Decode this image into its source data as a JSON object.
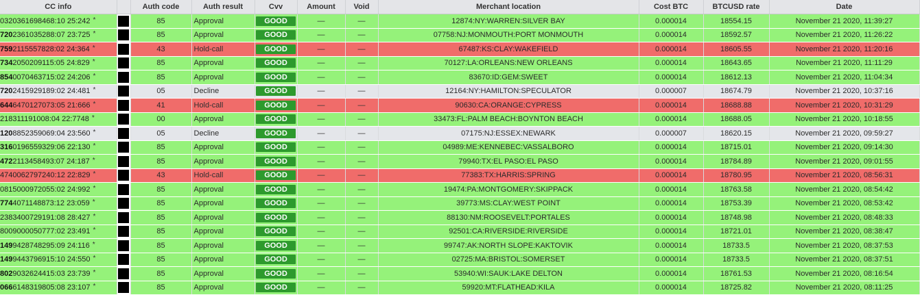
{
  "columns": [
    "CC info",
    "",
    "Auth code",
    "Auth result",
    "Cvv",
    "Amount",
    "Void",
    "Merchant location",
    "Cost BTC",
    "BTCUSD rate",
    "Date"
  ],
  "colors": {
    "approval": "#95f27a",
    "hold": "#f06c6a",
    "decline": "#e4e6ea",
    "cvv_badge": "#2d9a2d"
  },
  "rows": [
    {
      "status": "green",
      "cc_bin": "",
      "cc_rest": "0320361698468:10 25:242",
      "star": "*",
      "auth_code": "85",
      "auth_result": "Approval",
      "cvv": "GOOD",
      "amount": "—",
      "void": "—",
      "merchant": "12874:NY:WARREN:SILVER BAY",
      "cost_btc": "0.000014",
      "btcusd": "18554.15",
      "date": "November 21 2020, 11:39:27"
    },
    {
      "status": "green",
      "cc_bin": "720",
      "cc_rest": "2361035288:07 23:725",
      "star": "*",
      "auth_code": "85",
      "auth_result": "Approval",
      "cvv": "GOOD",
      "amount": "—",
      "void": "—",
      "merchant": "07758:NJ:MONMOUTH:PORT MONMOUTH",
      "cost_btc": "0.000014",
      "btcusd": "18592.57",
      "date": "November 21 2020, 11:26:22"
    },
    {
      "status": "red",
      "cc_bin": "759",
      "cc_rest": "2115557828:02 24:364",
      "star": "*",
      "auth_code": "43",
      "auth_result": "Hold-call",
      "cvv": "GOOD",
      "amount": "—",
      "void": "—",
      "merchant": "67487:KS:CLAY:WAKEFIELD",
      "cost_btc": "0.000014",
      "btcusd": "18605.55",
      "date": "November 21 2020, 11:20:16"
    },
    {
      "status": "green",
      "cc_bin": "734",
      "cc_rest": "2050209115:05 24:829",
      "star": "*",
      "auth_code": "85",
      "auth_result": "Approval",
      "cvv": "GOOD",
      "amount": "—",
      "void": "—",
      "merchant": "70127:LA:ORLEANS:NEW ORLEANS",
      "cost_btc": "0.000014",
      "btcusd": "18643.65",
      "date": "November 21 2020, 11:11:29"
    },
    {
      "status": "green",
      "cc_bin": "854",
      "cc_rest": "0070463715:02 24:206",
      "star": "*",
      "auth_code": "85",
      "auth_result": "Approval",
      "cvv": "GOOD",
      "amount": "—",
      "void": "—",
      "merchant": "83670:ID:GEM:SWEET",
      "cost_btc": "0.000014",
      "btcusd": "18612.13",
      "date": "November 21 2020, 11:04:34"
    },
    {
      "status": "gray",
      "cc_bin": "720",
      "cc_rest": "2415929189:02 24:481",
      "star": "*",
      "auth_code": "05",
      "auth_result": "Decline",
      "cvv": "GOOD",
      "amount": "—",
      "void": "—",
      "merchant": "12164:NY:HAMILTON:SPECULATOR",
      "cost_btc": "0.000007",
      "btcusd": "18674.79",
      "date": "November 21 2020, 10:37:16"
    },
    {
      "status": "red",
      "cc_bin": "644",
      "cc_rest": "6470127073:05 21:666",
      "star": "*",
      "auth_code": "41",
      "auth_result": "Hold-call",
      "cvv": "GOOD",
      "amount": "—",
      "void": "—",
      "merchant": "90630:CA:ORANGE:CYPRESS",
      "cost_btc": "0.000014",
      "btcusd": "18688.88",
      "date": "November 21 2020, 10:31:29"
    },
    {
      "status": "green",
      "cc_bin": "",
      "cc_rest": "218311191008:04 22:7748",
      "star": "*",
      "auth_code": "00",
      "auth_result": "Approval",
      "cvv": "GOOD",
      "amount": "—",
      "void": "—",
      "merchant": "33473:FL:PALM BEACH:BOYNTON BEACH",
      "cost_btc": "0.000014",
      "btcusd": "18688.05",
      "date": "November 21 2020, 10:18:55"
    },
    {
      "status": "gray",
      "cc_bin": "120",
      "cc_rest": "8852359069:04 23:560",
      "star": "*",
      "auth_code": "05",
      "auth_result": "Decline",
      "cvv": "GOOD",
      "amount": "—",
      "void": "—",
      "merchant": "07175:NJ:ESSEX:NEWARK",
      "cost_btc": "0.000007",
      "btcusd": "18620.15",
      "date": "November 21 2020, 09:59:27"
    },
    {
      "status": "green",
      "cc_bin": "316",
      "cc_rest": "0196559329:06 22:130",
      "star": "*",
      "auth_code": "85",
      "auth_result": "Approval",
      "cvv": "GOOD",
      "amount": "—",
      "void": "—",
      "merchant": "04989:ME:KENNEBEC:VASSALBORO",
      "cost_btc": "0.000014",
      "btcusd": "18715.01",
      "date": "November 21 2020, 09:14:30"
    },
    {
      "status": "green",
      "cc_bin": "472",
      "cc_rest": "2113458493:07 24:187",
      "star": "*",
      "auth_code": "85",
      "auth_result": "Approval",
      "cvv": "GOOD",
      "amount": "—",
      "void": "—",
      "merchant": "79940:TX:EL PASO:EL PASO",
      "cost_btc": "0.000014",
      "btcusd": "18784.89",
      "date": "November 21 2020, 09:01:55"
    },
    {
      "status": "red",
      "cc_bin": "",
      "cc_rest": "4740062797240:12 22:829",
      "star": "*",
      "auth_code": "43",
      "auth_result": "Hold-call",
      "cvv": "GOOD",
      "amount": "—",
      "void": "—",
      "merchant": "77383:TX:HARRIS:SPRING",
      "cost_btc": "0.000014",
      "btcusd": "18780.95",
      "date": "November 21 2020, 08:56:31"
    },
    {
      "status": "green",
      "cc_bin": "",
      "cc_rest": "0815000972055:02 24:992",
      "star": "*",
      "auth_code": "85",
      "auth_result": "Approval",
      "cvv": "GOOD",
      "amount": "—",
      "void": "—",
      "merchant": "19474:PA:MONTGOMERY:SKIPPACK",
      "cost_btc": "0.000014",
      "btcusd": "18763.58",
      "date": "November 21 2020, 08:54:42"
    },
    {
      "status": "green",
      "cc_bin": "774",
      "cc_rest": "4071148873:12 23:059",
      "star": "*",
      "auth_code": "85",
      "auth_result": "Approval",
      "cvv": "GOOD",
      "amount": "—",
      "void": "—",
      "merchant": "39773:MS:CLAY:WEST POINT",
      "cost_btc": "0.000014",
      "btcusd": "18753.39",
      "date": "November 21 2020, 08:53:42"
    },
    {
      "status": "green",
      "cc_bin": "",
      "cc_rest": "2383400729191:08 28:427",
      "star": "*",
      "auth_code": "85",
      "auth_result": "Approval",
      "cvv": "GOOD",
      "amount": "—",
      "void": "—",
      "merchant": "88130:NM:ROOSEVELT:PORTALES",
      "cost_btc": "0.000014",
      "btcusd": "18748.98",
      "date": "November 21 2020, 08:48:33"
    },
    {
      "status": "green",
      "cc_bin": "",
      "cc_rest": "8009000050777:02 23:491",
      "star": "*",
      "auth_code": "85",
      "auth_result": "Approval",
      "cvv": "GOOD",
      "amount": "—",
      "void": "—",
      "merchant": "92501:CA:RIVERSIDE:RIVERSIDE",
      "cost_btc": "0.000014",
      "btcusd": "18721.01",
      "date": "November 21 2020, 08:38:47"
    },
    {
      "status": "green",
      "cc_bin": "149",
      "cc_rest": "9428748295:09 24:116",
      "star": "*",
      "auth_code": "85",
      "auth_result": "Approval",
      "cvv": "GOOD",
      "amount": "—",
      "void": "—",
      "merchant": "99747:AK:NORTH SLOPE:KAKTOVIK",
      "cost_btc": "0.000014",
      "btcusd": "18733.5",
      "date": "November 21 2020, 08:37:53"
    },
    {
      "status": "green",
      "cc_bin": "149",
      "cc_rest": "9443796915:10 24:550",
      "star": "*",
      "auth_code": "85",
      "auth_result": "Approval",
      "cvv": "GOOD",
      "amount": "—",
      "void": "—",
      "merchant": "02725:MA:BRISTOL:SOMERSET",
      "cost_btc": "0.000014",
      "btcusd": "18733.5",
      "date": "November 21 2020, 08:37:51"
    },
    {
      "status": "green",
      "cc_bin": "802",
      "cc_rest": "9032624415:03 23:739",
      "star": "*",
      "auth_code": "85",
      "auth_result": "Approval",
      "cvv": "GOOD",
      "amount": "—",
      "void": "—",
      "merchant": "53940:WI:SAUK:LAKE DELTON",
      "cost_btc": "0.000014",
      "btcusd": "18761.53",
      "date": "November 21 2020, 08:16:54"
    },
    {
      "status": "green",
      "cc_bin": "066",
      "cc_rest": "6148319805:08 23:107",
      "star": "*",
      "auth_code": "85",
      "auth_result": "Approval",
      "cvv": "GOOD",
      "amount": "—",
      "void": "—",
      "merchant": "59920:MT:FLATHEAD:KILA",
      "cost_btc": "0.000014",
      "btcusd": "18725.82",
      "date": "November 21 2020, 08:11:25"
    }
  ]
}
